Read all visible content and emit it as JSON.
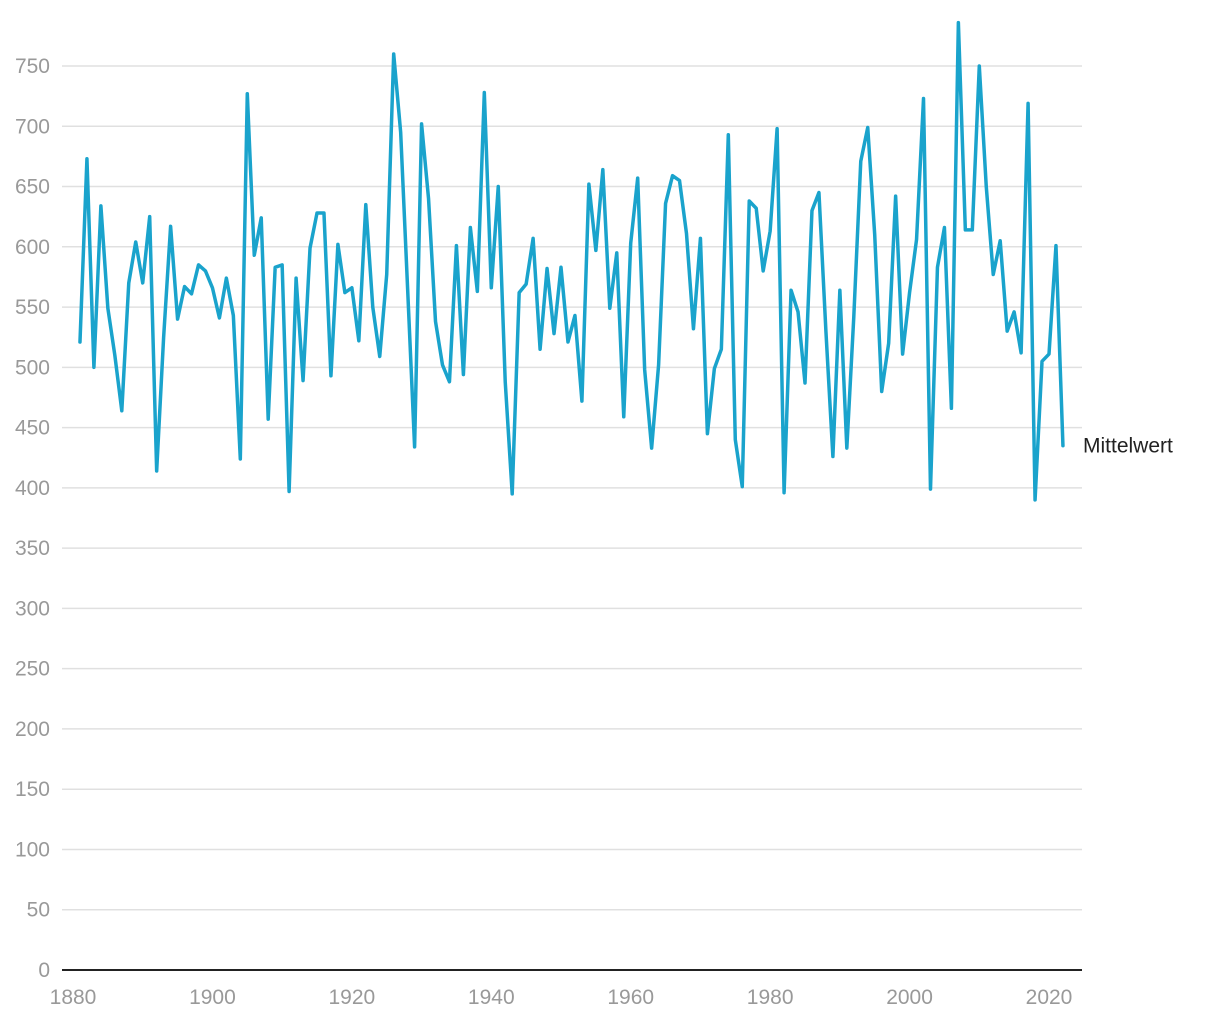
{
  "chart_data": {
    "type": "line",
    "title": "",
    "xlabel": "",
    "ylabel": "",
    "xlim": [
      1880,
      2022
    ],
    "ylim": [
      0,
      785
    ],
    "y_ticks": [
      0,
      50,
      100,
      150,
      200,
      250,
      300,
      350,
      400,
      450,
      500,
      550,
      600,
      650,
      700,
      750
    ],
    "x_ticks": [
      1880,
      1900,
      1920,
      1940,
      1960,
      1980,
      2000,
      2020
    ],
    "grid": true,
    "legend": "line-end label",
    "colors": {
      "line": "#1aa3cc",
      "grid": "#e0e0e0",
      "axis": "#222222",
      "tick_text": "#999999"
    },
    "series": [
      {
        "name": "Mittelwert",
        "x": [
          1881,
          1882,
          1883,
          1884,
          1885,
          1886,
          1887,
          1888,
          1889,
          1890,
          1891,
          1892,
          1893,
          1894,
          1895,
          1896,
          1897,
          1898,
          1899,
          1900,
          1901,
          1902,
          1903,
          1904,
          1905,
          1906,
          1907,
          1908,
          1909,
          1910,
          1911,
          1912,
          1913,
          1914,
          1915,
          1916,
          1917,
          1918,
          1919,
          1920,
          1921,
          1922,
          1923,
          1924,
          1925,
          1926,
          1927,
          1928,
          1929,
          1930,
          1931,
          1932,
          1933,
          1934,
          1935,
          1936,
          1937,
          1938,
          1939,
          1940,
          1941,
          1942,
          1943,
          1944,
          1945,
          1946,
          1947,
          1948,
          1949,
          1950,
          1951,
          1952,
          1953,
          1954,
          1955,
          1956,
          1957,
          1958,
          1959,
          1960,
          1961,
          1962,
          1963,
          1964,
          1965,
          1966,
          1967,
          1968,
          1969,
          1970,
          1971,
          1972,
          1973,
          1974,
          1975,
          1976,
          1977,
          1978,
          1979,
          1980,
          1981,
          1982,
          1983,
          1984,
          1985,
          1986,
          1987,
          1988,
          1989,
          1990,
          1991,
          1992,
          1993,
          1994,
          1995,
          1996,
          1997,
          1998,
          1999,
          2000,
          2001,
          2002,
          2003,
          2004,
          2005,
          2006,
          2007,
          2008,
          2009,
          2010,
          2011,
          2012,
          2013,
          2014,
          2015,
          2016,
          2017,
          2018,
          2019,
          2020,
          2021,
          2022
        ],
        "values": [
          521,
          673,
          500,
          634,
          549,
          510,
          464,
          570,
          604,
          570,
          625,
          414,
          525,
          617,
          540,
          567,
          561,
          585,
          580,
          566,
          541,
          574,
          543,
          424,
          727,
          593,
          624,
          457,
          583,
          585,
          397,
          574,
          489,
          599,
          628,
          628,
          493,
          602,
          562,
          566,
          522,
          635,
          550,
          509,
          577,
          760,
          695,
          565,
          434,
          702,
          640,
          538,
          502,
          488,
          601,
          494,
          616,
          563,
          728,
          566,
          650,
          488,
          395,
          562,
          569,
          607,
          515,
          582,
          528,
          583,
          521,
          543,
          472,
          652,
          597,
          664,
          549,
          595,
          459,
          603,
          657,
          498,
          433,
          502,
          636,
          659,
          655,
          611,
          532,
          607,
          445,
          499,
          515,
          693,
          440,
          401,
          638,
          632,
          580,
          613,
          698,
          396,
          564,
          546,
          487,
          630,
          645,
          530,
          426,
          564,
          433,
          542,
          671,
          699,
          610,
          480,
          520,
          642,
          511,
          562,
          606,
          723,
          399,
          583,
          616,
          466,
          786,
          614,
          614,
          750,
          650,
          577,
          605,
          530,
          546,
          512,
          719,
          390,
          505,
          511,
          601,
          435
        ]
      }
    ]
  }
}
